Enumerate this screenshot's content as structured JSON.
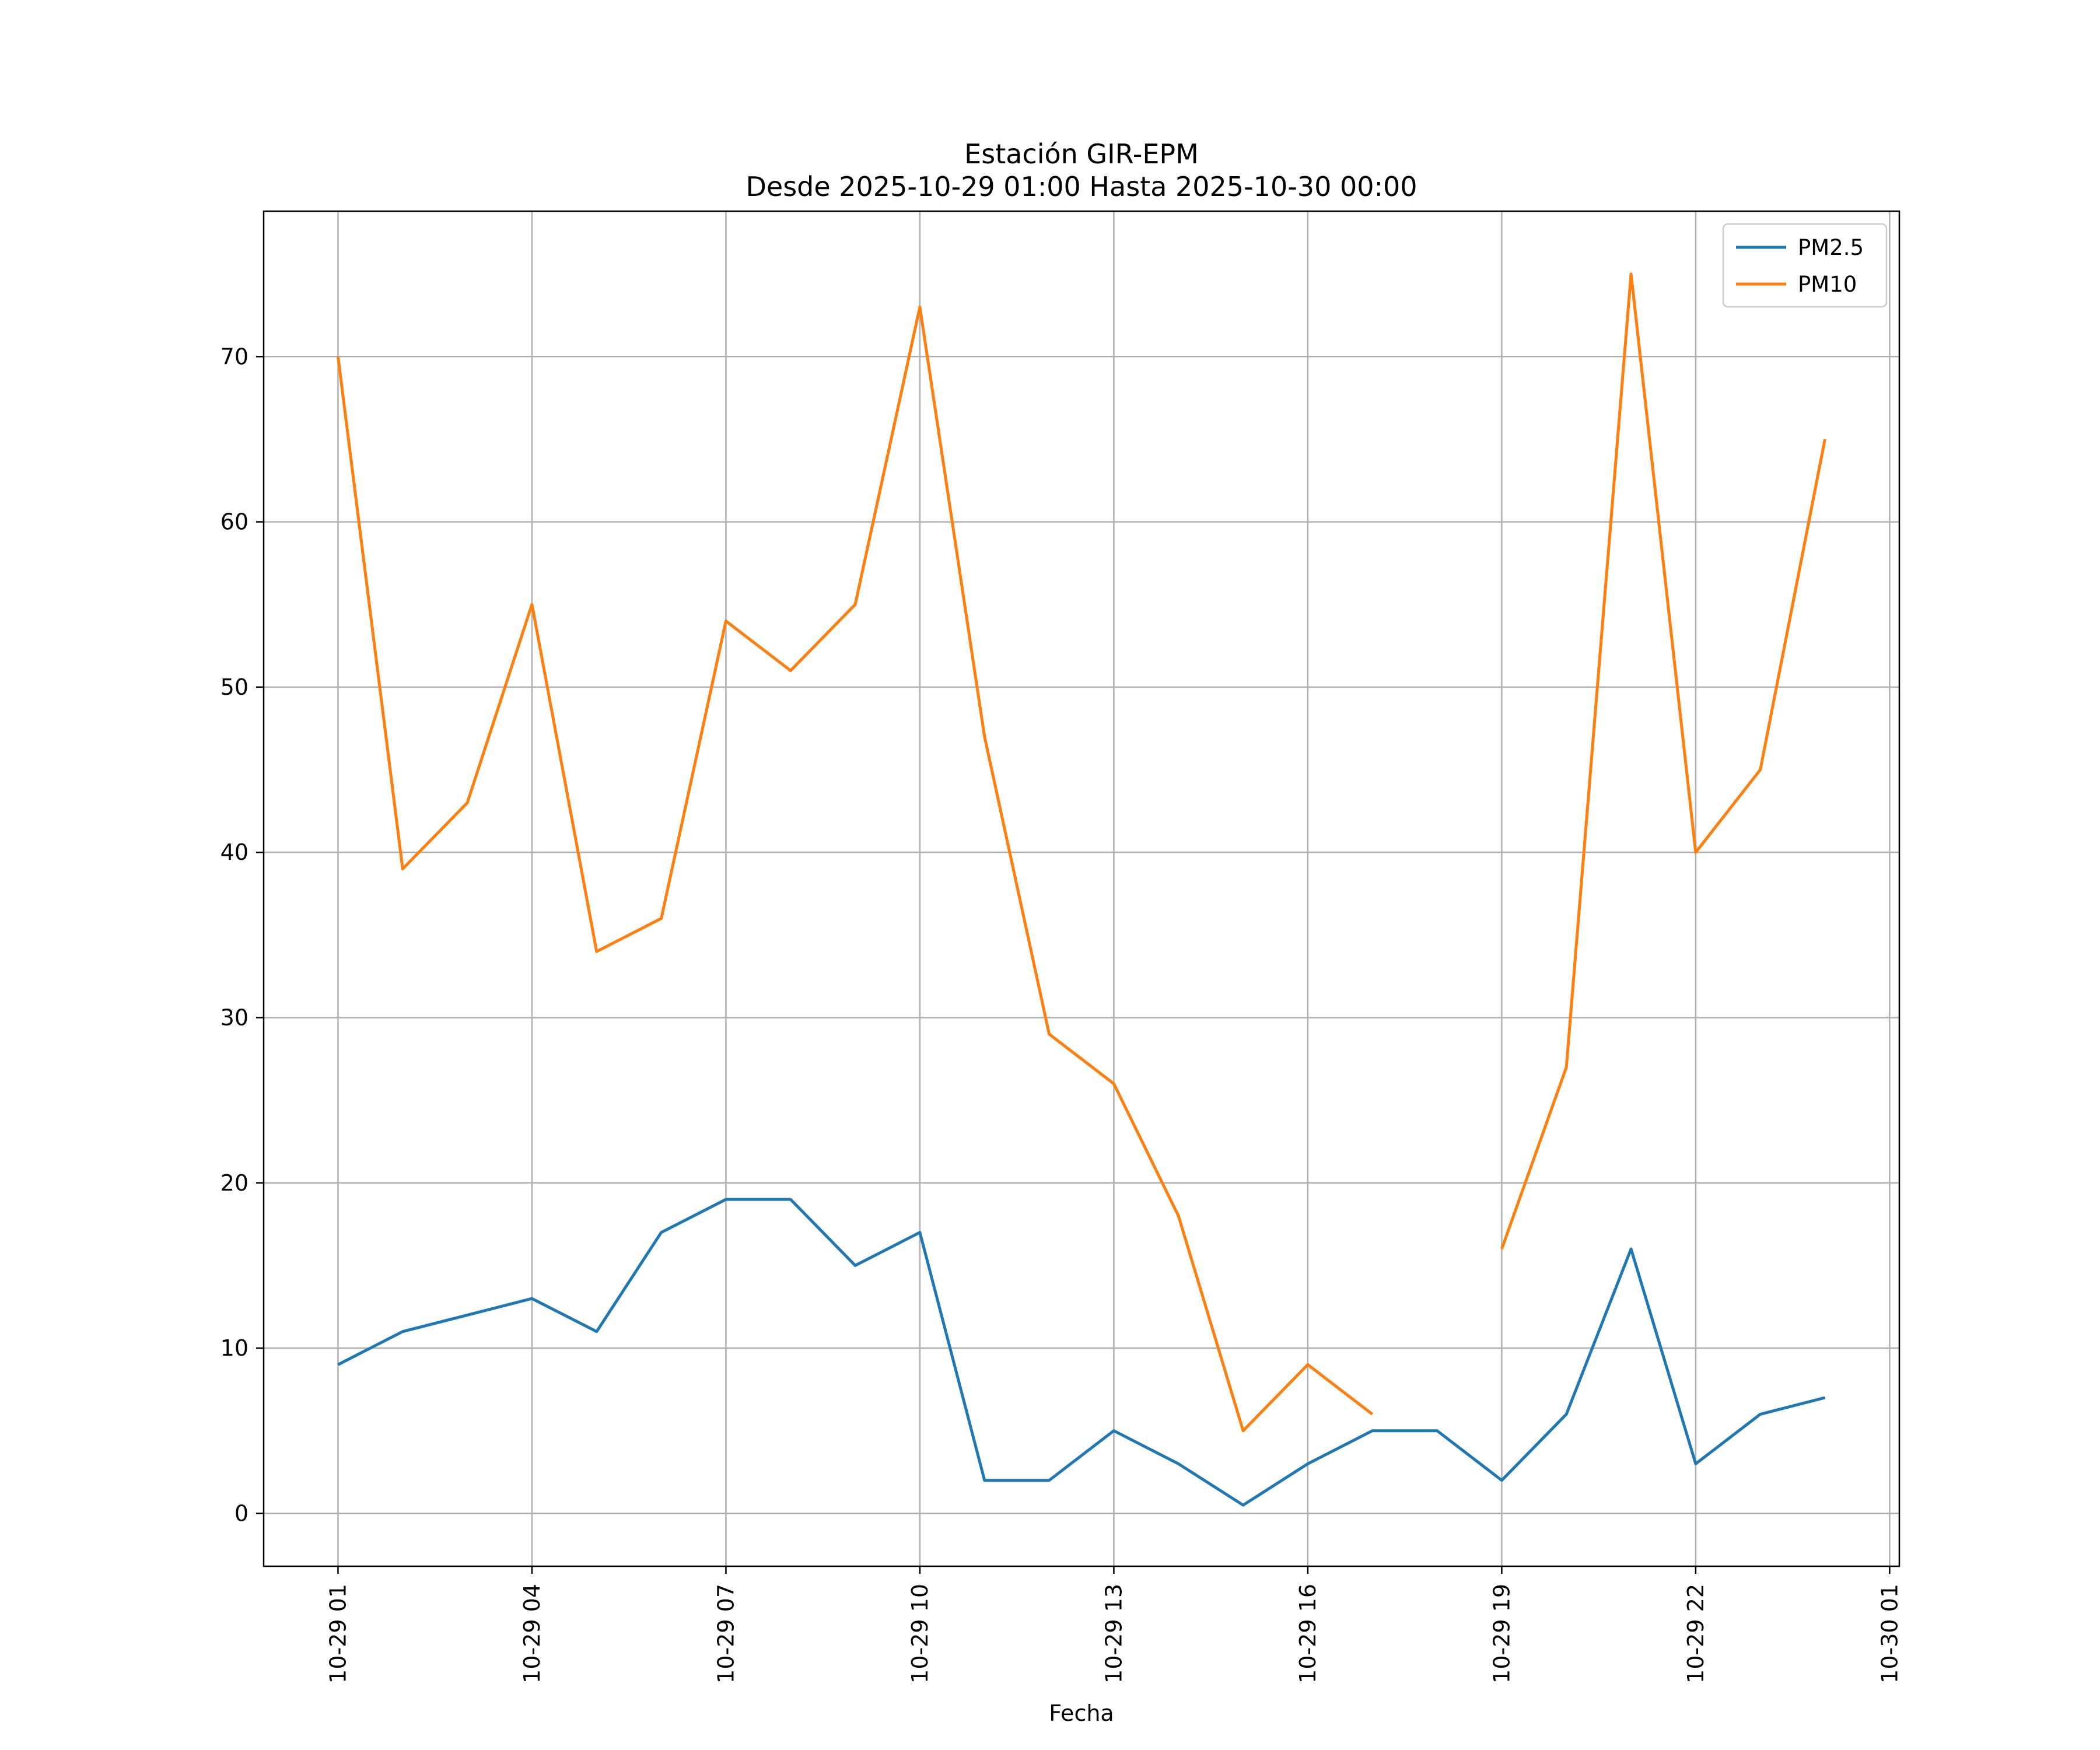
{
  "chart_data": {
    "type": "line",
    "title": "Estación GIR-EPM",
    "subtitle": "Desde 2025-10-29 01:00 Hasta 2025-10-30 00:00",
    "xlabel": "Fecha",
    "ylabel": "",
    "x": [
      "2025-10-29 01:00",
      "2025-10-29 02:00",
      "2025-10-29 03:00",
      "2025-10-29 04:00",
      "2025-10-29 05:00",
      "2025-10-29 06:00",
      "2025-10-29 07:00",
      "2025-10-29 08:00",
      "2025-10-29 09:00",
      "2025-10-29 10:00",
      "2025-10-29 11:00",
      "2025-10-29 12:00",
      "2025-10-29 13:00",
      "2025-10-29 14:00",
      "2025-10-29 15:00",
      "2025-10-29 16:00",
      "2025-10-29 17:00",
      "2025-10-29 18:00",
      "2025-10-29 19:00",
      "2025-10-29 20:00",
      "2025-10-29 21:00",
      "2025-10-29 22:00",
      "2025-10-29 23:00",
      "2025-10-30 00:00"
    ],
    "xticks": [
      "10-29 01",
      "10-29 04",
      "10-29 07",
      "10-29 10",
      "10-29 13",
      "10-29 16",
      "10-29 19",
      "10-29 22",
      "10-30 01"
    ],
    "xtick_values": [
      "2025-10-29 01:00",
      "2025-10-29 04:00",
      "2025-10-29 07:00",
      "2025-10-29 10:00",
      "2025-10-29 13:00",
      "2025-10-29 16:00",
      "2025-10-29 19:00",
      "2025-10-29 22:00",
      "2025-10-30 01:00"
    ],
    "xlim": [
      "2025-10-28 23:51",
      "2025-10-30 01:09"
    ],
    "ylim": [
      -3.2,
      78.8
    ],
    "yticks": [
      0,
      10,
      20,
      30,
      40,
      50,
      60,
      70
    ],
    "grid": true,
    "legend_position": "top-right",
    "series": [
      {
        "name": "PM2.5",
        "color": "#1f77b4",
        "values": [
          9,
          11,
          12,
          13,
          11,
          17,
          19,
          19,
          15,
          17,
          2,
          2,
          5,
          3,
          0.5,
          3,
          5,
          5,
          2,
          6,
          16,
          3,
          6,
          7
        ]
      },
      {
        "name": "PM10",
        "color": "#ff7f0e",
        "values": [
          70,
          39,
          43,
          55,
          34,
          36,
          54,
          51,
          55,
          73,
          47,
          29,
          26,
          18,
          5,
          9,
          6,
          null,
          16,
          27,
          75,
          40,
          45,
          65
        ]
      }
    ]
  }
}
